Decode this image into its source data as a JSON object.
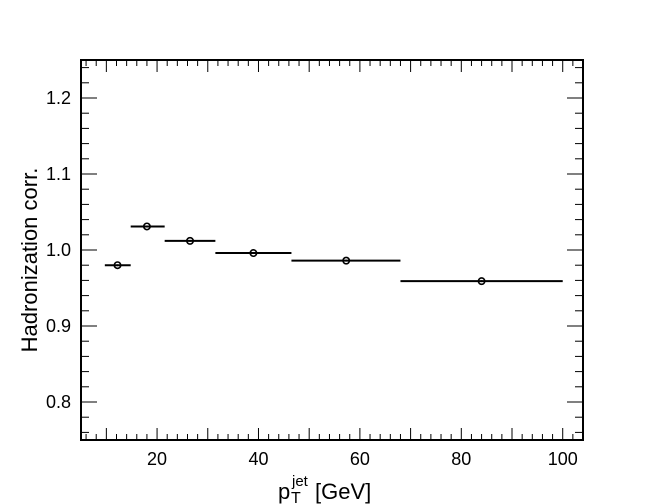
{
  "chart_data": {
    "type": "scatter",
    "title": "",
    "xlabel": "p",
    "xlabel_sub": "T",
    "xlabel_sup": "jet",
    "xlabel_unit": " [GeV]",
    "ylabel": "Hadronization corr.",
    "xlim": [
      5,
      104
    ],
    "ylim": [
      0.75,
      1.25
    ],
    "xticks": [
      20,
      40,
      60,
      80,
      100
    ],
    "xtick_labels": [
      "20",
      "40",
      "60",
      "80",
      "100"
    ],
    "yticks": [
      0.8,
      0.9,
      1.0,
      1.1,
      1.2
    ],
    "ytick_labels": [
      "0.8",
      "0.9",
      "1.0",
      "1.1",
      "1.2"
    ],
    "grid": false,
    "legend": "none",
    "marker_color": "#000000",
    "points": [
      {
        "x": 12.2,
        "y": 0.98,
        "xlow": 9.7,
        "xhigh": 14.8
      },
      {
        "x": 18.0,
        "y": 1.031,
        "xlow": 14.8,
        "xhigh": 21.5
      },
      {
        "x": 26.5,
        "y": 1.012,
        "xlow": 21.5,
        "xhigh": 31.5
      },
      {
        "x": 39.0,
        "y": 0.996,
        "xlow": 31.5,
        "xhigh": 46.5
      },
      {
        "x": 57.3,
        "y": 0.986,
        "xlow": 46.5,
        "xhigh": 68.0
      },
      {
        "x": 84.0,
        "y": 0.959,
        "xlow": 68.0,
        "xhigh": 100.0
      }
    ]
  }
}
